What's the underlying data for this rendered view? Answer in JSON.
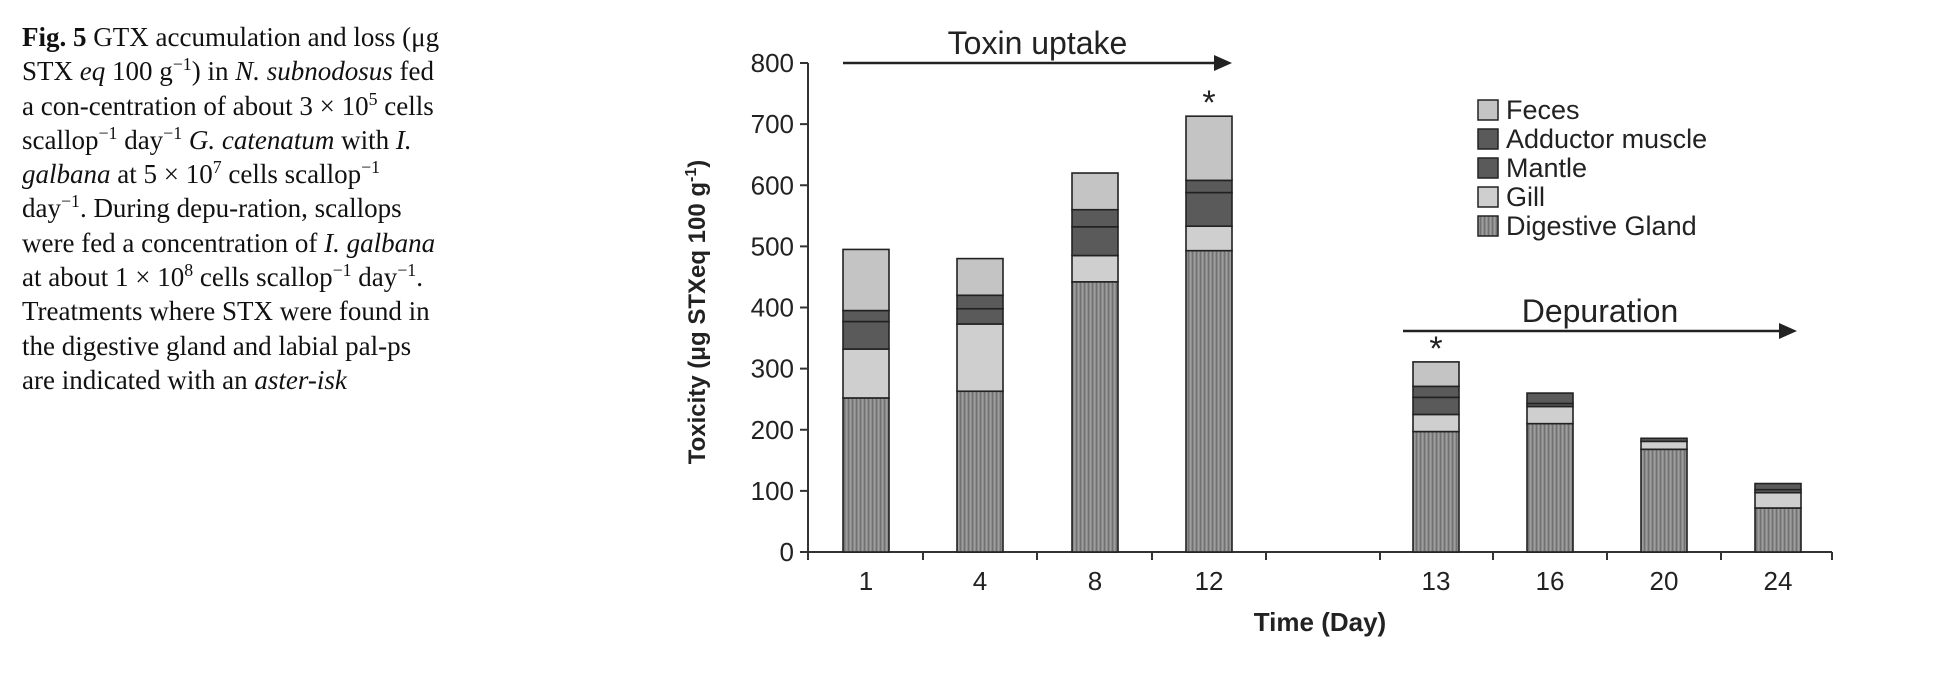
{
  "caption": {
    "label": "Fig. 5",
    "runs": [
      {
        "t": "  GTX accumulation and loss (μg STX "
      },
      {
        "t": "eq",
        "i": true
      },
      {
        "t": " 100 g"
      },
      {
        "t": "−1",
        "sup": true
      },
      {
        "t": ") in "
      },
      {
        "t": "N. subnodosus",
        "i": true
      },
      {
        "t": " fed a con-centration of about 3 × 10"
      },
      {
        "t": "5",
        "sup": true
      },
      {
        "t": " cells scallop"
      },
      {
        "t": "−1",
        "sup": true
      },
      {
        "t": " day"
      },
      {
        "t": "−1",
        "sup": true
      },
      {
        "t": " "
      },
      {
        "t": "G. catenatum",
        "i": true
      },
      {
        "t": " with "
      },
      {
        "t": "I. galbana",
        "i": true
      },
      {
        "t": " at 5 × 10"
      },
      {
        "t": "7",
        "sup": true
      },
      {
        "t": " cells scallop"
      },
      {
        "t": "−1",
        "sup": true
      },
      {
        "t": " day"
      },
      {
        "t": "−1",
        "sup": true
      },
      {
        "t": ". During depu-ration, scallops were fed a concentration of "
      },
      {
        "t": "I. galbana",
        "i": true
      },
      {
        "t": " at about 1 × 10"
      },
      {
        "t": "8",
        "sup": true
      },
      {
        "t": " cells scallop"
      },
      {
        "t": "−1",
        "sup": true
      },
      {
        "t": " day"
      },
      {
        "t": "−1",
        "sup": true
      },
      {
        "t": ". Treatments where STX were found in the digestive gland and labial pal-ps are indicated with an "
      },
      {
        "t": "aster-isk",
        "i": true
      }
    ]
  },
  "chart_data": {
    "type": "bar",
    "stacked": true,
    "ylabel": "Toxicity (μg STXeq 100 g",
    "ylabel_sup": "-1",
    "ylabel_end": ")",
    "xlabel": "Time (Day)",
    "ylim": [
      0,
      800
    ],
    "yticks": [
      0,
      100,
      200,
      300,
      400,
      500,
      600,
      700,
      800
    ],
    "categories": [
      "1",
      "4",
      "8",
      "12",
      "13",
      "16",
      "20",
      "24"
    ],
    "asterisk_categories": [
      "12",
      "13"
    ],
    "asterisk_symbol": "*",
    "series": [
      {
        "name": "Digestive Gland",
        "color": "#8c8c8c",
        "hatch": true,
        "values": [
          252,
          263,
          442,
          493,
          197,
          210,
          168,
          72
        ]
      },
      {
        "name": "Gill",
        "color": "#cfcfcf",
        "values": [
          80,
          110,
          43,
          40,
          28,
          28,
          13,
          25
        ]
      },
      {
        "name": "Mantle",
        "color": "#5a5a5a",
        "values": [
          45,
          25,
          47,
          55,
          28,
          5,
          0,
          5
        ]
      },
      {
        "name": "Adductor muscle",
        "color": "#5a5a5a",
        "values": [
          18,
          22,
          28,
          20,
          18,
          17,
          5,
          10
        ]
      },
      {
        "name": "Feces",
        "color": "#c4c4c4",
        "values": [
          100,
          60,
          60,
          105,
          40,
          0,
          0,
          0
        ]
      }
    ],
    "legend_order": [
      "Feces",
      "Adductor muscle",
      "Mantle",
      "Gill",
      "Digestive Gland"
    ],
    "legend_position": "top-right",
    "annotations": [
      {
        "text": "Toxin uptake",
        "from": "1",
        "to": "12",
        "type": "arrow"
      },
      {
        "text": "Depuration",
        "from": "13",
        "to": "24",
        "type": "arrow"
      }
    ]
  }
}
